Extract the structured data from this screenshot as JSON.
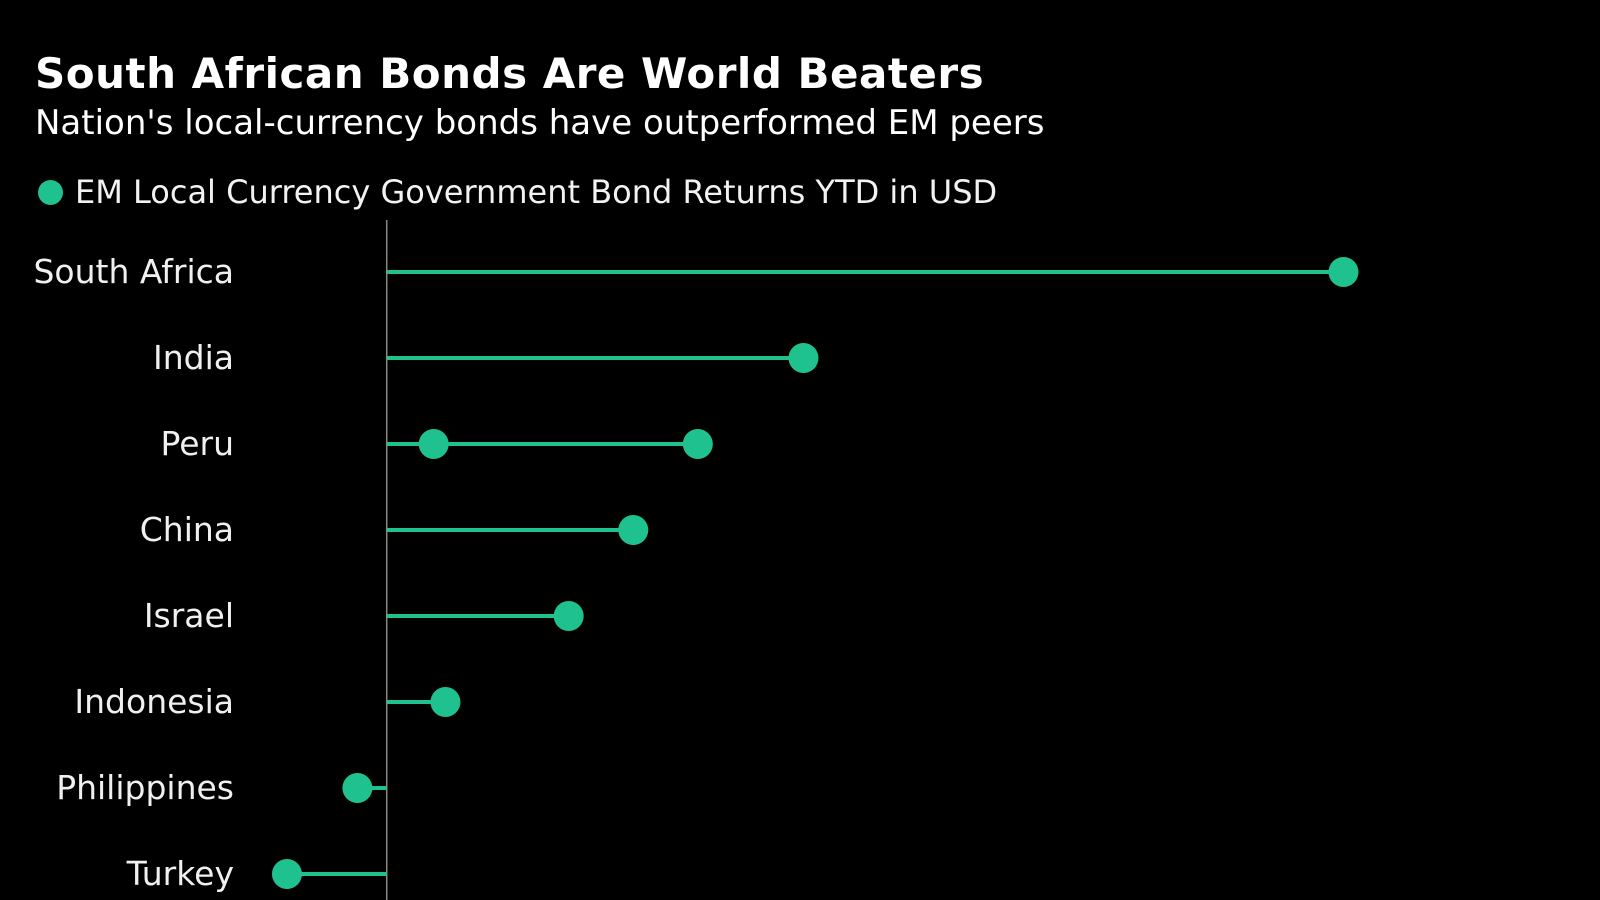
{
  "chart_data": {
    "type": "dot",
    "title": "South African Bonds Are World Beaters",
    "subtitle": "Nation's local-currency bonds have outperformed EM peers",
    "legend_position": "top-left",
    "grid": false,
    "series": [
      {
        "name": "EM Local Currency Government Bond Returns YTD in USD",
        "color": "#1fc18e"
      }
    ],
    "categories": [
      "South Africa",
      "India",
      "Peru",
      "China",
      "Israel",
      "Indonesia",
      "Philippines",
      "Turkey"
    ],
    "values": [
      [
        16.3
      ],
      [
        7.1
      ],
      [
        0.8,
        5.3
      ],
      [
        4.2
      ],
      [
        3.1
      ],
      [
        1.0
      ],
      [
        -0.5
      ],
      [
        -1.7
      ]
    ],
    "xlim": [
      -2.5,
      20.5
    ]
  },
  "colors": {
    "background": "#000000",
    "accent": "#1fc18e",
    "axis": "#888888"
  }
}
